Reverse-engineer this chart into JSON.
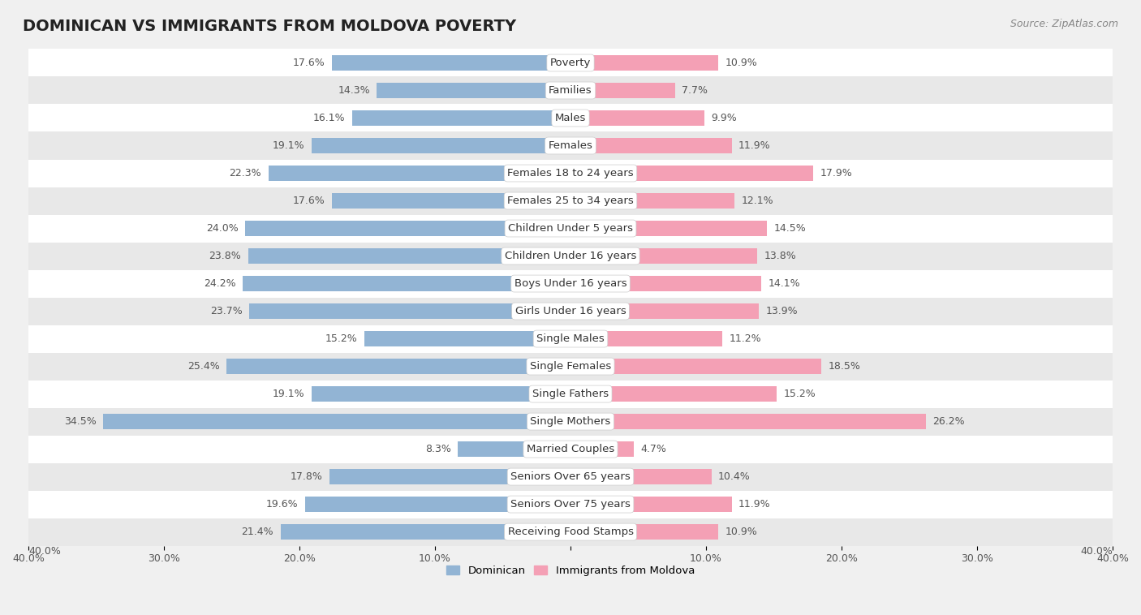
{
  "title": "DOMINICAN VS IMMIGRANTS FROM MOLDOVA POVERTY",
  "source": "Source: ZipAtlas.com",
  "categories": [
    "Poverty",
    "Families",
    "Males",
    "Females",
    "Females 18 to 24 years",
    "Females 25 to 34 years",
    "Children Under 5 years",
    "Children Under 16 years",
    "Boys Under 16 years",
    "Girls Under 16 years",
    "Single Males",
    "Single Females",
    "Single Fathers",
    "Single Mothers",
    "Married Couples",
    "Seniors Over 65 years",
    "Seniors Over 75 years",
    "Receiving Food Stamps"
  ],
  "dominican": [
    17.6,
    14.3,
    16.1,
    19.1,
    22.3,
    17.6,
    24.0,
    23.8,
    24.2,
    23.7,
    15.2,
    25.4,
    19.1,
    34.5,
    8.3,
    17.8,
    19.6,
    21.4
  ],
  "moldova": [
    10.9,
    7.7,
    9.9,
    11.9,
    17.9,
    12.1,
    14.5,
    13.8,
    14.1,
    13.9,
    11.2,
    18.5,
    15.2,
    26.2,
    4.7,
    10.4,
    11.9,
    10.9
  ],
  "dominican_color": "#92b4d4",
  "moldova_color": "#f4a0b5",
  "bar_height": 0.55,
  "xlim": 40.0,
  "background_color": "#f0f0f0",
  "row_bg_light": "#ffffff",
  "row_bg_dark": "#e8e8e8",
  "label_fontsize": 9.5,
  "value_fontsize": 9.0,
  "title_fontsize": 14,
  "source_fontsize": 9
}
